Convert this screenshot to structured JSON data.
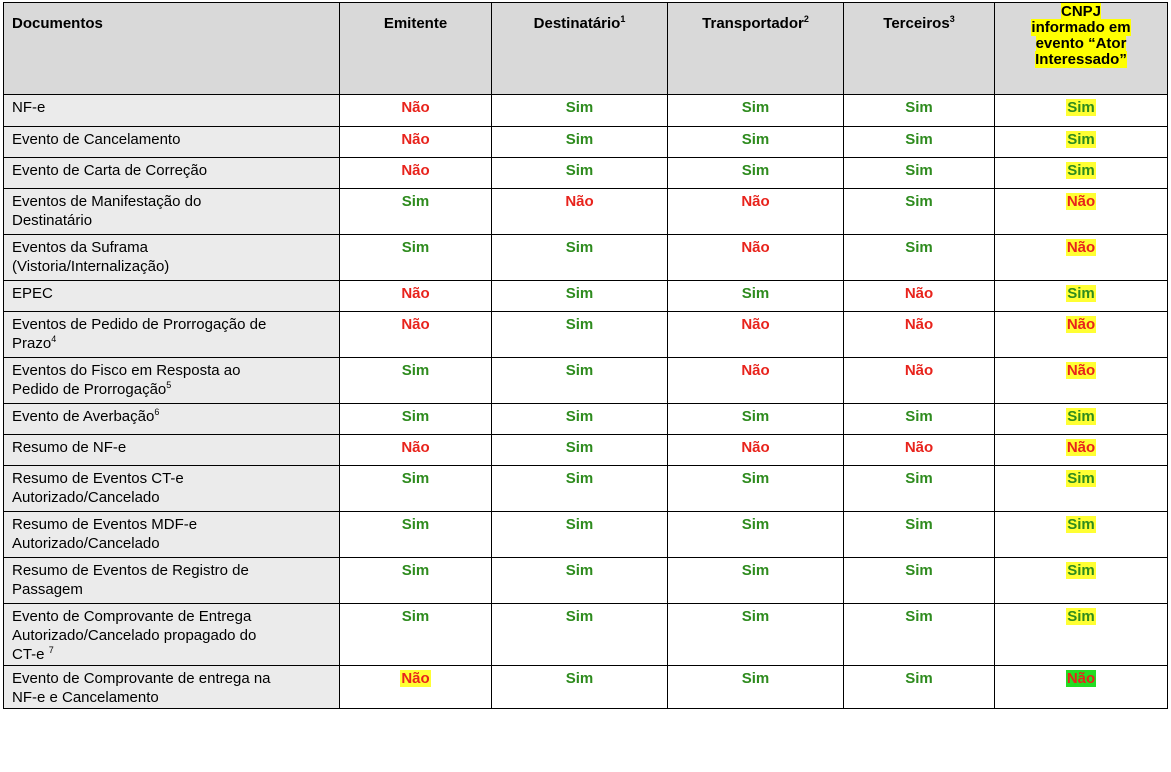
{
  "headers": {
    "documentos": "Documentos",
    "emitente": "Emitente",
    "destinatario": "Destinatário",
    "destinatario_sup": "1",
    "transportador": "Transportador",
    "transportador_sup": "2",
    "terceiros": "Terceiros",
    "terceiros_sup": "3",
    "cnpj_line1": "CNPJ",
    "cnpj_line2": "informado em",
    "cnpj_line3": "evento “Ator",
    "cnpj_line4": "Interessado”"
  },
  "colors": {
    "sim": "#2e8b1e",
    "nao": "#e8231c",
    "highlight_yellow": "#ffff33",
    "highlight_green": "#22dd22",
    "header_bg": "#d9d9d9"
  },
  "rows": [
    {
      "l1": "NF-e",
      "l2": "",
      "l3": "",
      "sup": "",
      "emitente": "Não",
      "destinatario": "Sim",
      "transportador": "Sim",
      "terceiros": "Sim",
      "cnpj": "Sim"
    },
    {
      "l1": "Evento de Cancelamento",
      "l2": "",
      "l3": "",
      "sup": "",
      "emitente": "Não",
      "destinatario": "Sim",
      "transportador": "Sim",
      "terceiros": "Sim",
      "cnpj": "Sim"
    },
    {
      "l1": "Evento de Carta de Correção",
      "l2": "",
      "l3": "",
      "sup": "",
      "emitente": "Não",
      "destinatario": "Sim",
      "transportador": "Sim",
      "terceiros": "Sim",
      "cnpj": "Sim"
    },
    {
      "l1": "Eventos de Manifestação do",
      "l2": "Destinatário",
      "l3": "",
      "sup": "",
      "emitente": "Sim",
      "destinatario": "Não",
      "transportador": "Não",
      "terceiros": "Sim",
      "cnpj": "Não"
    },
    {
      "l1": "Eventos da Suframa",
      "l2": "(Vistoria/Internalização)",
      "l3": "",
      "sup": "",
      "emitente": "Sim",
      "destinatario": "Sim",
      "transportador": "Não",
      "terceiros": "Sim",
      "cnpj": "Não"
    },
    {
      "l1": "EPEC",
      "l2": "",
      "l3": "",
      "sup": "",
      "emitente": "Não",
      "destinatario": "Sim",
      "transportador": "Sim",
      "terceiros": "Não",
      "cnpj": "Sim"
    },
    {
      "l1": "Eventos de Pedido de Prorrogação de",
      "l2": "Prazo",
      "l3": "",
      "sup": "4",
      "emitente": "Não",
      "destinatario": "Sim",
      "transportador": "Não",
      "terceiros": "Não",
      "cnpj": "Não"
    },
    {
      "l1": "Eventos do Fisco em Resposta ao",
      "l2": "Pedido de Prorrogação",
      "l3": "",
      "sup": "5",
      "emitente": "Sim",
      "destinatario": "Sim",
      "transportador": "Não",
      "terceiros": "Não",
      "cnpj": "Não"
    },
    {
      "l1": "Evento de Averbação",
      "l2": "",
      "l3": "",
      "sup": "6",
      "emitente": "Sim",
      "destinatario": "Sim",
      "transportador": "Sim",
      "terceiros": "Sim",
      "cnpj": "Sim"
    },
    {
      "l1": "Resumo de NF-e",
      "l2": "",
      "l3": "",
      "sup": "",
      "emitente": "Não",
      "destinatario": "Sim",
      "transportador": "Não",
      "terceiros": "Não",
      "cnpj": "Não"
    },
    {
      "l1": "Resumo de Eventos CT-e",
      "l2": "Autorizado/Cancelado",
      "l3": "",
      "sup": "",
      "emitente": "Sim",
      "destinatario": "Sim",
      "transportador": "Sim",
      "terceiros": "Sim",
      "cnpj": "Sim"
    },
    {
      "l1": "Resumo de Eventos MDF-e",
      "l2": "Autorizado/Cancelado",
      "l3": "",
      "sup": "",
      "emitente": "Sim",
      "destinatario": "Sim",
      "transportador": "Sim",
      "terceiros": "Sim",
      "cnpj": "Sim"
    },
    {
      "l1": "Resumo de Eventos de Registro de",
      "l2": "Passagem",
      "l3": "",
      "sup": "",
      "emitente": "Sim",
      "destinatario": "Sim",
      "transportador": "Sim",
      "terceiros": "Sim",
      "cnpj": "Sim"
    },
    {
      "l1": "Evento de Comprovante de Entrega",
      "l2": "Autorizado/Cancelado propagado do",
      "l3": "CT-e ",
      "sup": "7",
      "emitente": "Sim",
      "destinatario": "Sim",
      "transportador": "Sim",
      "terceiros": "Sim",
      "cnpj": "Sim"
    },
    {
      "l1": "Evento de Comprovante de entrega na",
      "l2": "NF-e e Cancelamento",
      "l3": "",
      "sup": "",
      "emitente": "Não",
      "destinatario": "Sim",
      "transportador": "Sim",
      "terceiros": "Sim",
      "cnpj": "Não"
    }
  ]
}
